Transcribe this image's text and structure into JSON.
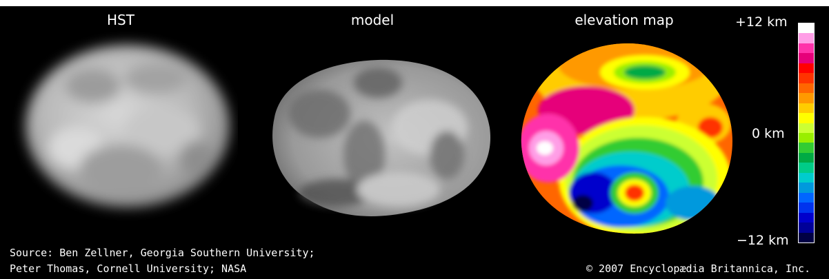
{
  "panels": {
    "hst_label": "HST",
    "model_label": "model",
    "elevation_label": "elevation map"
  },
  "scale": {
    "top": "+12 km",
    "middle": "0 km",
    "bottom": "−12 km",
    "colors": [
      "#ffffff",
      "#ff9ee6",
      "#ff33aa",
      "#e6007a",
      "#ff0000",
      "#ff3300",
      "#ff6600",
      "#ff9900",
      "#ffcc00",
      "#ffff00",
      "#ccff33",
      "#99ee00",
      "#33cc33",
      "#00aa44",
      "#00cc88",
      "#00cccc",
      "#0099dd",
      "#0066ff",
      "#0033ee",
      "#0000cc",
      "#000099",
      "#000044"
    ]
  },
  "credits": {
    "source_line1": "Source: Ben Zellner, Georgia Southern University;",
    "source_line2": "Peter Thomas, Cornell University; NASA",
    "copyright": "© 2007 Encyclopædia Britannica, Inc."
  }
}
